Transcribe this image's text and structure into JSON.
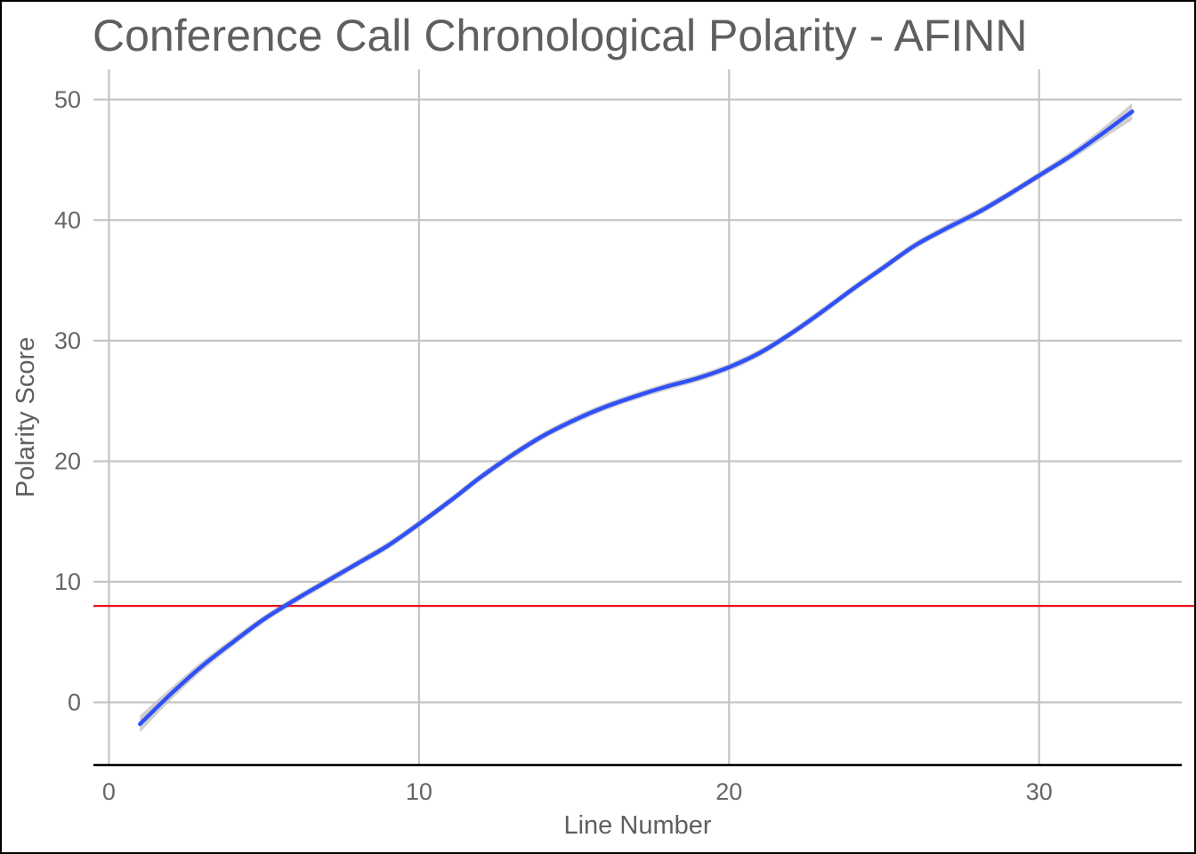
{
  "chart_data": {
    "type": "line",
    "title": "Conference Call Chronological Polarity - AFINN",
    "xlabel": "Line Number",
    "ylabel": "Polarity Score",
    "xlim": [
      -0.5,
      34.6
    ],
    "ylim": [
      -5.2,
      52.5
    ],
    "x_ticks": [
      0,
      10,
      20,
      30
    ],
    "x_tick_labels": [
      "0",
      "10",
      "20",
      "30"
    ],
    "y_ticks": [
      0,
      10,
      20,
      30,
      40,
      50
    ],
    "y_tick_labels": [
      "0",
      "10",
      "20",
      "30",
      "40",
      "50"
    ],
    "grid": true,
    "legend": "none",
    "series": [
      {
        "style": "smooth",
        "color": "#3050f8",
        "confidence_band_color": "#bdbdbd",
        "points": [
          [
            1,
            -1.8
          ],
          [
            2,
            0.7
          ],
          [
            3,
            3.0
          ],
          [
            4,
            5.0
          ],
          [
            5,
            6.9
          ],
          [
            6,
            8.5
          ],
          [
            7,
            10.0
          ],
          [
            8,
            11.5
          ],
          [
            9,
            13.0
          ],
          [
            10,
            14.8
          ],
          [
            11,
            16.7
          ],
          [
            12,
            18.7
          ],
          [
            13,
            20.5
          ],
          [
            14,
            22.1
          ],
          [
            15,
            23.4
          ],
          [
            16,
            24.5
          ],
          [
            17,
            25.4
          ],
          [
            18,
            26.2
          ],
          [
            19,
            26.9
          ],
          [
            20,
            27.8
          ],
          [
            21,
            29.0
          ],
          [
            22,
            30.6
          ],
          [
            23,
            32.4
          ],
          [
            24,
            34.3
          ],
          [
            25,
            36.1
          ],
          [
            26,
            37.9
          ],
          [
            27,
            39.3
          ],
          [
            28,
            40.6
          ],
          [
            29,
            42.1
          ],
          [
            30,
            43.7
          ],
          [
            31,
            45.3
          ],
          [
            32,
            47.1
          ],
          [
            33,
            49.0
          ]
        ],
        "band_width": [
          0.7,
          0.5,
          0.4,
          0.35,
          0.3,
          0.3,
          0.3,
          0.3,
          0.3,
          0.3,
          0.3,
          0.3,
          0.3,
          0.3,
          0.3,
          0.3,
          0.3,
          0.3,
          0.3,
          0.3,
          0.3,
          0.3,
          0.3,
          0.3,
          0.3,
          0.3,
          0.3,
          0.3,
          0.3,
          0.3,
          0.35,
          0.45,
          0.7
        ]
      }
    ],
    "reference_line": {
      "y": 8,
      "color": "#e8101c"
    },
    "x_axis_line_color": "#000000"
  }
}
